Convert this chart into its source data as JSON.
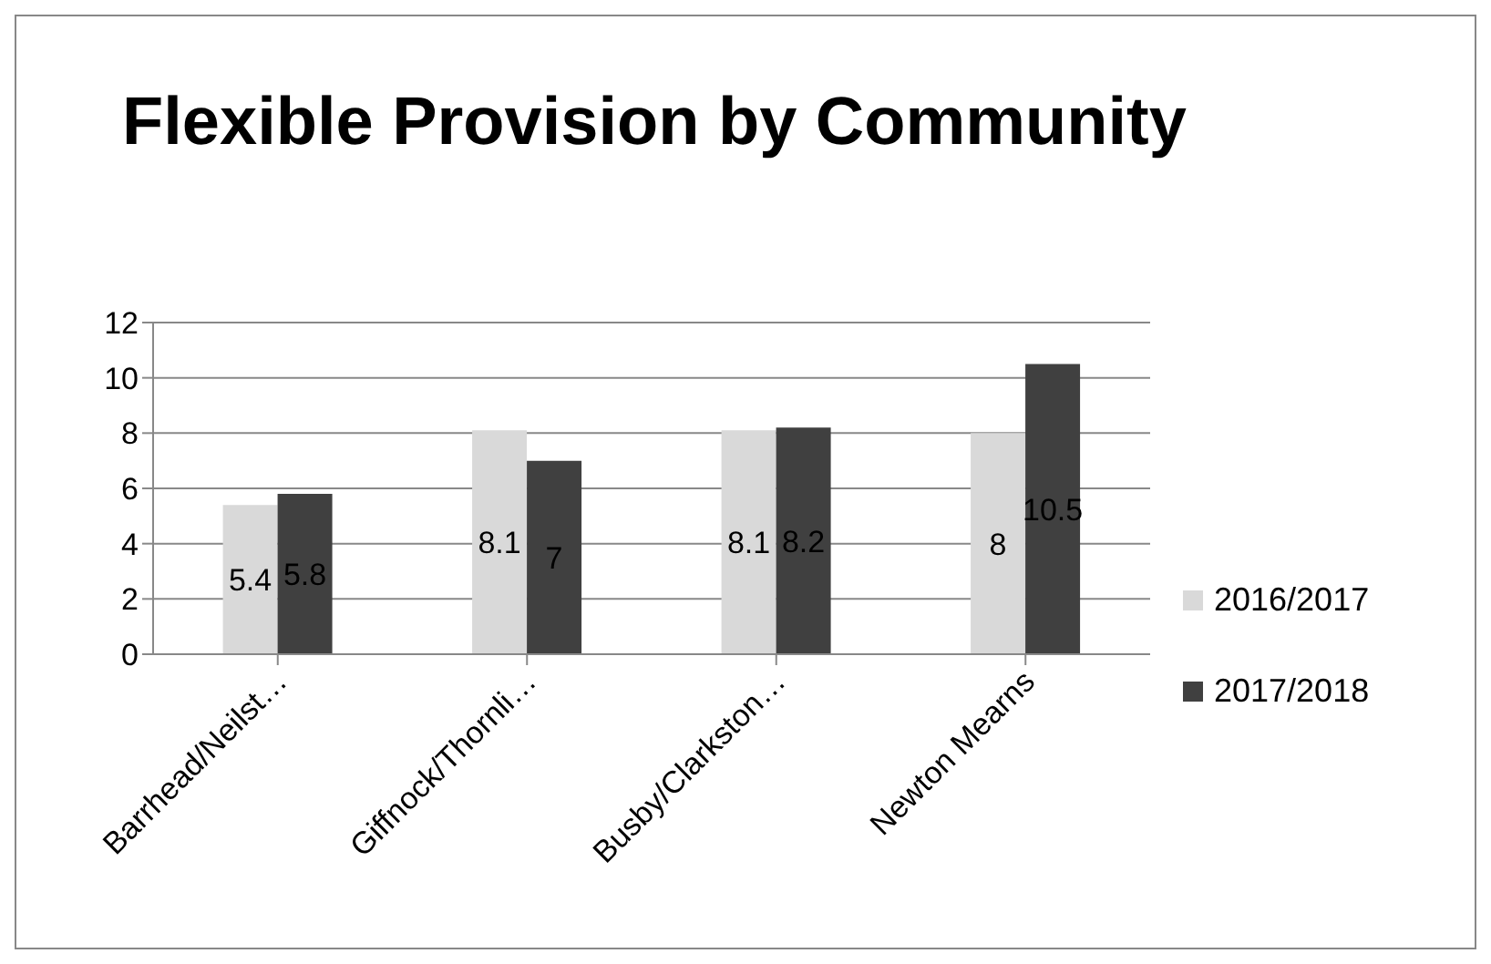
{
  "chart_data": {
    "type": "bar",
    "title": "Flexible Provision by Community",
    "categories": [
      "Barrhead/Neilst…",
      "Giffnock/Thornli…",
      "Busby/Clarkston…",
      "Newton Mearns"
    ],
    "series": [
      {
        "name": "2016/2017",
        "color": "#d9d9d9",
        "values": [
          5.4,
          8.1,
          8.1,
          8
        ]
      },
      {
        "name": "2017/2018",
        "color": "#404040",
        "values": [
          5.8,
          7,
          8.2,
          10.5
        ]
      }
    ],
    "ylim": [
      0,
      12
    ],
    "yticks": [
      0,
      2,
      4,
      6,
      8,
      10,
      12
    ],
    "grid": "y",
    "legend": "right",
    "data_labels": true
  }
}
